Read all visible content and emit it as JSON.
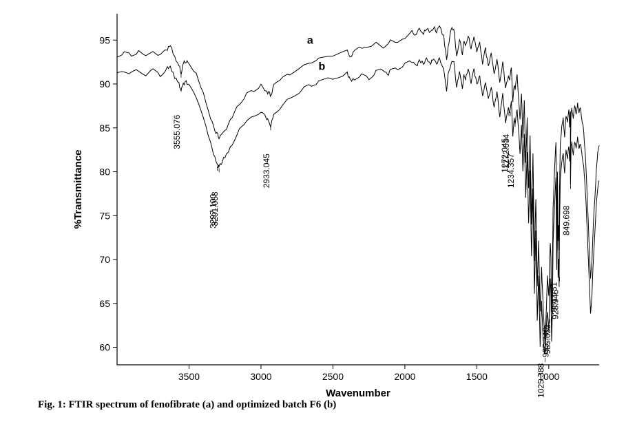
{
  "caption": "Fig. 1: FTIR spectrum of fenofibrate (a) and optimized batch F6 (b)",
  "axes": {
    "xlabel": "Wavenumber",
    "ylabel": "%Transmittance",
    "xlim_max": 4000,
    "xlim_min": 650,
    "ylim_min": 58,
    "ylim_max": 98,
    "xticks": [
      3500,
      3000,
      2500,
      2000,
      1500,
      1000
    ],
    "yticks": [
      60,
      65,
      70,
      75,
      80,
      85,
      90,
      95
    ],
    "label_fontsize": 15,
    "tick_fontsize": 14,
    "background_color": "#ffffff",
    "axis_color": "#000000"
  },
  "curves": {
    "a": {
      "label": "a",
      "label_x": 2680,
      "label_y": 94.6,
      "color": "#000000",
      "line_width": 1,
      "points": [
        [
          4000,
          93.2
        ],
        [
          3950,
          93.5
        ],
        [
          3900,
          93.3
        ],
        [
          3850,
          93.7
        ],
        [
          3800,
          93.1
        ],
        [
          3750,
          93.8
        ],
        [
          3700,
          93.2
        ],
        [
          3650,
          94.0
        ],
        [
          3630,
          94.4
        ],
        [
          3600,
          93.0
        ],
        [
          3570,
          92.2
        ],
        [
          3555,
          91.2
        ],
        [
          3540,
          92.4
        ],
        [
          3520,
          92.6
        ],
        [
          3500,
          92.4
        ],
        [
          3450,
          91.2
        ],
        [
          3400,
          89.0
        ],
        [
          3350,
          86.2
        ],
        [
          3320,
          84.6
        ],
        [
          3300,
          84.2
        ],
        [
          3291,
          83.9
        ],
        [
          3270,
          84.3
        ],
        [
          3240,
          85.0
        ],
        [
          3200,
          86.2
        ],
        [
          3150,
          87.8
        ],
        [
          3100,
          88.8
        ],
        [
          3050,
          89.3
        ],
        [
          3000,
          89.8
        ],
        [
          2960,
          89.1
        ],
        [
          2940,
          88.9
        ],
        [
          2933,
          88.6
        ],
        [
          2910,
          89.8
        ],
        [
          2850,
          90.6
        ],
        [
          2800,
          91.2
        ],
        [
          2700,
          92.1
        ],
        [
          2650,
          92.5
        ],
        [
          2600,
          92.8
        ],
        [
          2500,
          93.3
        ],
        [
          2400,
          93.8
        ],
        [
          2380,
          93.0
        ],
        [
          2350,
          93.7
        ],
        [
          2300,
          94.2
        ],
        [
          2200,
          94.6
        ],
        [
          2150,
          94.0
        ],
        [
          2100,
          95.0
        ],
        [
          2050,
          94.6
        ],
        [
          2000,
          95.3
        ],
        [
          1950,
          96.0
        ],
        [
          1930,
          95.5
        ],
        [
          1900,
          96.2
        ],
        [
          1870,
          95.8
        ],
        [
          1850,
          96.3
        ],
        [
          1820,
          95.9
        ],
        [
          1800,
          96.5
        ],
        [
          1780,
          96.0
        ],
        [
          1760,
          96.6
        ],
        [
          1730,
          95.4
        ],
        [
          1710,
          92.8
        ],
        [
          1700,
          94.2
        ],
        [
          1680,
          96.2
        ],
        [
          1660,
          96.4
        ],
        [
          1640,
          93.0
        ],
        [
          1620,
          95.2
        ],
        [
          1600,
          93.4
        ],
        [
          1590,
          95.0
        ],
        [
          1580,
          94.2
        ],
        [
          1560,
          95.6
        ],
        [
          1540,
          94.0
        ],
        [
          1520,
          95.4
        ],
        [
          1500,
          93.8
        ],
        [
          1480,
          94.6
        ],
        [
          1460,
          92.4
        ],
        [
          1440,
          94.0
        ],
        [
          1420,
          92.0
        ],
        [
          1400,
          93.6
        ],
        [
          1380,
          91.0
        ],
        [
          1360,
          93.0
        ],
        [
          1340,
          90.0
        ],
        [
          1320,
          92.6
        ],
        [
          1300,
          89.5
        ],
        [
          1280,
          91.0
        ],
        [
          1272,
          90.6
        ],
        [
          1260,
          92.0
        ],
        [
          1250,
          88.0
        ],
        [
          1240,
          90.0
        ],
        [
          1234,
          89.4
        ],
        [
          1220,
          91.0
        ],
        [
          1200,
          86.0
        ],
        [
          1190,
          89.0
        ],
        [
          1180,
          84.0
        ],
        [
          1170,
          88.0
        ],
        [
          1160,
          81.0
        ],
        [
          1150,
          86.0
        ],
        [
          1140,
          78.0
        ],
        [
          1130,
          84.0
        ],
        [
          1120,
          74.0
        ],
        [
          1110,
          82.0
        ],
        [
          1100,
          70.0
        ],
        [
          1090,
          77.0
        ],
        [
          1080,
          67.0
        ],
        [
          1070,
          72.0
        ],
        [
          1060,
          64.0
        ],
        [
          1050,
          69.0
        ],
        [
          1040,
          65.0
        ],
        [
          1030,
          61.5
        ],
        [
          1025,
          60.2
        ],
        [
          1018,
          64.0
        ],
        [
          1010,
          68.0
        ],
        [
          1000,
          66.0
        ],
        [
          990,
          72.0
        ],
        [
          985,
          70.0
        ],
        [
          980,
          64.0
        ],
        [
          975,
          68.0
        ],
        [
          970,
          76.0
        ],
        [
          960,
          80.0
        ],
        [
          950,
          83.5
        ],
        [
          945,
          73.0
        ],
        [
          940,
          80.0
        ],
        [
          935,
          72.0
        ],
        [
          931,
          74.0
        ],
        [
          928,
          71.0
        ],
        [
          925,
          78.0
        ],
        [
          920,
          83.0
        ],
        [
          910,
          85.0
        ],
        [
          900,
          86.0
        ],
        [
          890,
          84.0
        ],
        [
          880,
          86.5
        ],
        [
          870,
          85.5
        ],
        [
          860,
          87.0
        ],
        [
          855,
          85.0
        ],
        [
          850,
          86.8
        ],
        [
          849,
          82.5
        ],
        [
          845,
          87.0
        ],
        [
          840,
          87.3
        ],
        [
          830,
          86.0
        ],
        [
          820,
          87.5
        ],
        [
          810,
          86.5
        ],
        [
          800,
          87.8
        ],
        [
          790,
          86.8
        ],
        [
          780,
          87.2
        ],
        [
          770,
          86.0
        ],
        [
          760,
          85.0
        ],
        [
          750,
          83.0
        ],
        [
          740,
          80.0
        ],
        [
          730,
          76.0
        ],
        [
          720,
          72.0
        ],
        [
          710,
          68.0
        ],
        [
          700,
          70.0
        ],
        [
          690,
          74.0
        ],
        [
          680,
          77.0
        ],
        [
          670,
          80.0
        ],
        [
          660,
          82.0
        ],
        [
          650,
          83.0
        ]
      ]
    },
    "b": {
      "label": "b",
      "label_x": 2600,
      "label_y": 91.6,
      "color": "#000000",
      "line_width": 1,
      "points": [
        [
          4000,
          91.2
        ],
        [
          3950,
          91.5
        ],
        [
          3900,
          91.2
        ],
        [
          3850,
          91.6
        ],
        [
          3800,
          91.0
        ],
        [
          3750,
          91.7
        ],
        [
          3700,
          91.0
        ],
        [
          3650,
          91.8
        ],
        [
          3630,
          92.0
        ],
        [
          3600,
          90.8
        ],
        [
          3570,
          90.0
        ],
        [
          3555,
          89.2
        ],
        [
          3540,
          90.0
        ],
        [
          3520,
          90.2
        ],
        [
          3500,
          89.8
        ],
        [
          3450,
          88.4
        ],
        [
          3400,
          86.0
        ],
        [
          3350,
          83.2
        ],
        [
          3320,
          81.6
        ],
        [
          3300,
          80.6
        ],
        [
          3297,
          80.4
        ],
        [
          3291,
          80.6
        ],
        [
          3270,
          81.2
        ],
        [
          3240,
          82.0
        ],
        [
          3200,
          83.2
        ],
        [
          3150,
          84.8
        ],
        [
          3100,
          85.8
        ],
        [
          3050,
          86.3
        ],
        [
          3000,
          86.8
        ],
        [
          2960,
          86.1
        ],
        [
          2940,
          85.6
        ],
        [
          2933,
          85.2
        ],
        [
          2910,
          86.6
        ],
        [
          2850,
          87.6
        ],
        [
          2800,
          88.4
        ],
        [
          2700,
          89.5
        ],
        [
          2650,
          89.9
        ],
        [
          2600,
          90.2
        ],
        [
          2500,
          90.7
        ],
        [
          2400,
          91.2
        ],
        [
          2380,
          90.4
        ],
        [
          2350,
          90.6
        ],
        [
          2300,
          91.0
        ],
        [
          2250,
          90.6
        ],
        [
          2200,
          91.4
        ],
        [
          2150,
          91.6
        ],
        [
          2120,
          91.0
        ],
        [
          2100,
          91.5
        ],
        [
          2050,
          91.8
        ],
        [
          2000,
          92.2
        ],
        [
          1950,
          92.6
        ],
        [
          1920,
          92.0
        ],
        [
          1900,
          92.7
        ],
        [
          1870,
          92.3
        ],
        [
          1850,
          92.8
        ],
        [
          1820,
          92.4
        ],
        [
          1800,
          92.9
        ],
        [
          1780,
          92.3
        ],
        [
          1760,
          92.8
        ],
        [
          1730,
          91.8
        ],
        [
          1710,
          89.0
        ],
        [
          1700,
          91.0
        ],
        [
          1680,
          92.4
        ],
        [
          1660,
          92.6
        ],
        [
          1640,
          89.6
        ],
        [
          1620,
          91.4
        ],
        [
          1600,
          89.6
        ],
        [
          1590,
          91.2
        ],
        [
          1580,
          90.4
        ],
        [
          1560,
          91.8
        ],
        [
          1540,
          90.2
        ],
        [
          1520,
          91.6
        ],
        [
          1500,
          90.0
        ],
        [
          1480,
          90.8
        ],
        [
          1460,
          88.6
        ],
        [
          1440,
          90.2
        ],
        [
          1420,
          88.2
        ],
        [
          1400,
          89.8
        ],
        [
          1380,
          87.2
        ],
        [
          1360,
          89.2
        ],
        [
          1340,
          86.2
        ],
        [
          1320,
          88.8
        ],
        [
          1300,
          85.7
        ],
        [
          1280,
          87.2
        ],
        [
          1272,
          86.8
        ],
        [
          1260,
          88.2
        ],
        [
          1250,
          84.2
        ],
        [
          1240,
          86.2
        ],
        [
          1234,
          85.6
        ],
        [
          1220,
          87.2
        ],
        [
          1200,
          82.2
        ],
        [
          1190,
          85.2
        ],
        [
          1180,
          80.2
        ],
        [
          1170,
          84.2
        ],
        [
          1160,
          77.2
        ],
        [
          1150,
          82.2
        ],
        [
          1140,
          74.2
        ],
        [
          1130,
          80.2
        ],
        [
          1120,
          70.2
        ],
        [
          1110,
          78.2
        ],
        [
          1100,
          66.2
        ],
        [
          1090,
          73.2
        ],
        [
          1080,
          63.2
        ],
        [
          1070,
          68.2
        ],
        [
          1060,
          60.2
        ],
        [
          1050,
          65.2
        ],
        [
          1040,
          61.2
        ],
        [
          1030,
          59.4
        ],
        [
          1025,
          60.0
        ],
        [
          1018,
          62.0
        ],
        [
          1010,
          64.0
        ],
        [
          1000,
          62.0
        ],
        [
          990,
          68.0
        ],
        [
          985,
          66.0
        ],
        [
          980,
          60.5
        ],
        [
          975,
          64.0
        ],
        [
          970,
          72.0
        ],
        [
          960,
          76.0
        ],
        [
          950,
          79.5
        ],
        [
          945,
          69.0
        ],
        [
          940,
          76.0
        ],
        [
          935,
          68.0
        ],
        [
          931,
          70.0
        ],
        [
          928,
          67.0
        ],
        [
          925,
          74.0
        ],
        [
          920,
          79.0
        ],
        [
          910,
          81.0
        ],
        [
          900,
          82.0
        ],
        [
          890,
          80.0
        ],
        [
          880,
          82.5
        ],
        [
          870,
          81.5
        ],
        [
          860,
          83.0
        ],
        [
          855,
          81.0
        ],
        [
          850,
          82.8
        ],
        [
          849,
          78.5
        ],
        [
          845,
          83.0
        ],
        [
          840,
          83.3
        ],
        [
          830,
          82.0
        ],
        [
          820,
          83.5
        ],
        [
          810,
          82.5
        ],
        [
          800,
          83.8
        ],
        [
          790,
          82.8
        ],
        [
          780,
          83.2
        ],
        [
          770,
          82.0
        ],
        [
          760,
          81.0
        ],
        [
          750,
          79.0
        ],
        [
          740,
          76.0
        ],
        [
          730,
          72.0
        ],
        [
          720,
          68.0
        ],
        [
          710,
          64.0
        ],
        [
          700,
          66.0
        ],
        [
          690,
          70.0
        ],
        [
          680,
          73.0
        ],
        [
          670,
          76.0
        ],
        [
          660,
          78.0
        ],
        [
          650,
          79.0
        ]
      ]
    }
  },
  "peak_labels": [
    {
      "text": "3555.076",
      "x": 3555,
      "y_from": 91.2,
      "len": 60
    },
    {
      "text": "3297.100",
      "x": 3303,
      "y_from": 80.6,
      "len": 40
    },
    {
      "text": "3291.058",
      "x": 3291,
      "y_from": 80.4,
      "len": 34
    },
    {
      "text": "2933.045",
      "x": 2933,
      "y_from": 85.2,
      "len": 40
    },
    {
      "text": "1272.045",
      "x": 1277,
      "y_from": 86.8,
      "len": 38
    },
    {
      "text": "1272.034",
      "x": 1267,
      "y_from": 86.8,
      "len": 32
    },
    {
      "text": "1234.357",
      "x": 1234,
      "y_from": 85.6,
      "len": 45
    },
    {
      "text": "1025.388",
      "x": 1025,
      "y_from": 58.8,
      "len": 8
    },
    {
      "text": "985.740",
      "x": 992,
      "y_from": 63.2,
      "len": 12
    },
    {
      "text": "985.023",
      "x": 980,
      "y_from": 63.4,
      "len": 10
    },
    {
      "text": "931.751",
      "x": 935,
      "y_from": 69.0,
      "len": 20
    },
    {
      "text": "928.945",
      "x": 925,
      "y_from": 68.0,
      "len": 18
    },
    {
      "text": "849.698",
      "x": 849,
      "y_from": 78.5,
      "len": 30
    }
  ]
}
